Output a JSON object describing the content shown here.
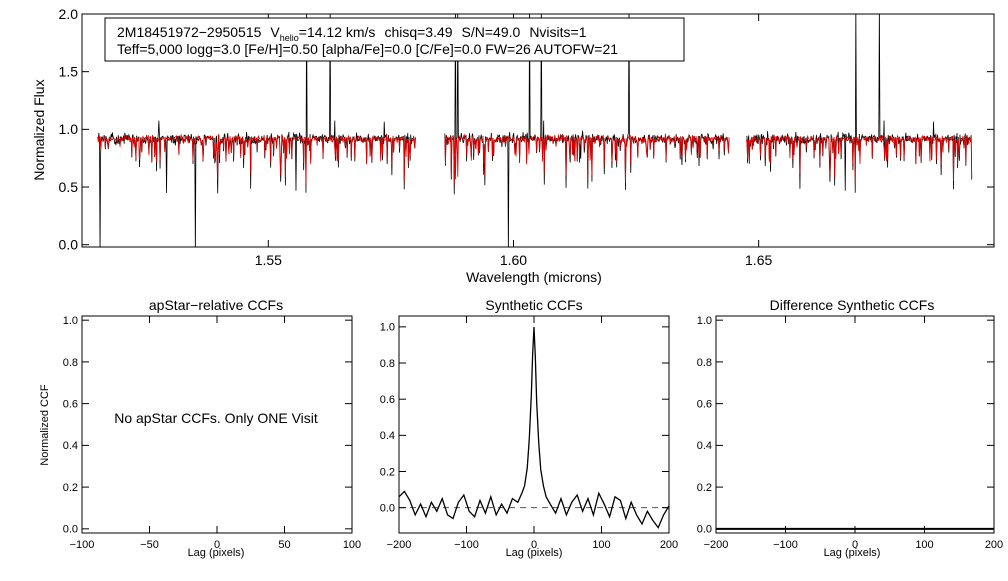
{
  "colors": {
    "axis": "#000000",
    "data": "#000000",
    "model": "#e00000",
    "background": "#ffffff",
    "zero_line": "#555555"
  },
  "chart_data": [
    {
      "id": "spectrum",
      "type": "line",
      "xlabel": "Wavelength (microns)",
      "ylabel": "Normalized Flux",
      "xlim": [
        1.512,
        1.698
      ],
      "ylim": [
        -0.02,
        2.0
      ],
      "xticks": [
        1.55,
        1.6,
        1.65
      ],
      "xtick_labels": [
        "1.55",
        "1.60",
        "1.65"
      ],
      "yticks": [
        0.0,
        0.5,
        1.0,
        1.5,
        2.0
      ],
      "ytick_labels": [
        "0.0",
        "0.5",
        "1.0",
        "1.5",
        "2.0"
      ],
      "chips": [
        [
          1.5152,
          1.58
        ],
        [
          1.586,
          1.644
        ],
        [
          1.6475,
          1.6935
        ]
      ],
      "continuum": 0.92,
      "annotation": {
        "star_id": "2M18451972−2950515",
        "vhelio_label": "V",
        "vhelio_sub": "helio",
        "vhelio_value": "=14.12 km/s",
        "chisq": "chisq=3.49",
        "snr": "S/N=49.0",
        "nvisits": "Nvisits=1",
        "line2": "Teff=5,000 logg=3.0 [Fe/H]=0.50 [alpha/Fe]=0.0 [C/Fe]=0.0 FW=26 AUTOFW=21"
      },
      "series": [
        {
          "name": "observed spectrum",
          "color": "#000000"
        },
        {
          "name": "synthetic model",
          "color": "#e00000"
        }
      ]
    },
    {
      "id": "apstar_ccf",
      "type": "line",
      "title": "apStar−relative CCFs",
      "xlabel": "Lag (pixels)",
      "ylabel": "Normalized CCF",
      "xlim": [
        -100,
        100
      ],
      "ylim": [
        -0.02,
        1.02
      ],
      "xticks": [
        -100,
        -50,
        0,
        50,
        100
      ],
      "xtick_labels": [
        "−100",
        "−50",
        "0",
        "50",
        "100"
      ],
      "yticks": [
        0.0,
        0.2,
        0.4,
        0.6,
        0.8,
        1.0
      ],
      "ytick_labels": [
        "0.0",
        "0.2",
        "0.4",
        "0.6",
        "0.8",
        "1.0"
      ],
      "message": "No apStar CCFs.  Only ONE Visit",
      "series": []
    },
    {
      "id": "synthetic_ccf",
      "type": "line",
      "title": "Synthetic CCFs",
      "xlabel": "Lag (pixels)",
      "ylabel": "",
      "xlim": [
        -200,
        200
      ],
      "ylim": [
        -0.14,
        1.06
      ],
      "xticks": [
        -200,
        -100,
        0,
        100,
        200
      ],
      "xtick_labels": [
        "−200",
        "−100",
        "0",
        "100",
        "200"
      ],
      "yticks": [
        0.0,
        0.2,
        0.4,
        0.6,
        0.8,
        1.0
      ],
      "ytick_labels": [
        "0.0",
        "0.2",
        "0.4",
        "0.6",
        "0.8",
        "1.0"
      ],
      "zero_line": 0.0,
      "series": [
        {
          "name": "synthetic CCF",
          "x": [
            -200,
            -192,
            -184,
            -176,
            -168,
            -160,
            -152,
            -144,
            -136,
            -128,
            -120,
            -112,
            -104,
            -96,
            -88,
            -80,
            -72,
            -64,
            -56,
            -48,
            -40,
            -32,
            -24,
            -18,
            -14,
            -10,
            -7,
            -4,
            -2,
            0,
            2,
            4,
            7,
            10,
            14,
            18,
            24,
            32,
            40,
            48,
            56,
            64,
            72,
            80,
            88,
            96,
            104,
            112,
            120,
            128,
            136,
            144,
            152,
            160,
            168,
            176,
            184,
            192,
            200
          ],
          "y": [
            0.06,
            0.09,
            0.04,
            -0.04,
            0.02,
            -0.05,
            0.03,
            -0.02,
            0.05,
            -0.04,
            -0.06,
            0.03,
            0.07,
            -0.02,
            -0.05,
            0.04,
            -0.03,
            0.06,
            -0.04,
            0.02,
            -0.03,
            0.05,
            0.03,
            0.08,
            0.12,
            0.22,
            0.38,
            0.62,
            0.85,
            1.0,
            0.83,
            0.58,
            0.36,
            0.21,
            0.12,
            0.06,
            0.02,
            -0.03,
            0.05,
            -0.04,
            0.03,
            0.07,
            -0.02,
            0.05,
            -0.04,
            0.08,
            0.02,
            -0.05,
            0.06,
            0.04,
            -0.06,
            0.03,
            -0.04,
            -0.09,
            -0.02,
            -0.07,
            -0.11,
            -0.04,
            0.01
          ]
        }
      ]
    },
    {
      "id": "difference_ccf",
      "type": "line",
      "title": "Difference Synthetic CCFs",
      "xlabel": "Lag (pixels)",
      "ylabel": "",
      "xlim": [
        -200,
        200
      ],
      "ylim": [
        -0.02,
        1.02
      ],
      "xticks": [
        -200,
        -100,
        0,
        100,
        200
      ],
      "xtick_labels": [
        "−200",
        "−100",
        "0",
        "100",
        "200"
      ],
      "yticks": [
        0.0,
        0.2,
        0.4,
        0.6,
        0.8,
        1.0
      ],
      "ytick_labels": [
        "0.0",
        "0.2",
        "0.4",
        "0.6",
        "0.8",
        "1.0"
      ],
      "series": [
        {
          "name": "difference CCF",
          "x": [
            -200,
            200
          ],
          "y": [
            0.0,
            0.0
          ]
        }
      ]
    }
  ]
}
